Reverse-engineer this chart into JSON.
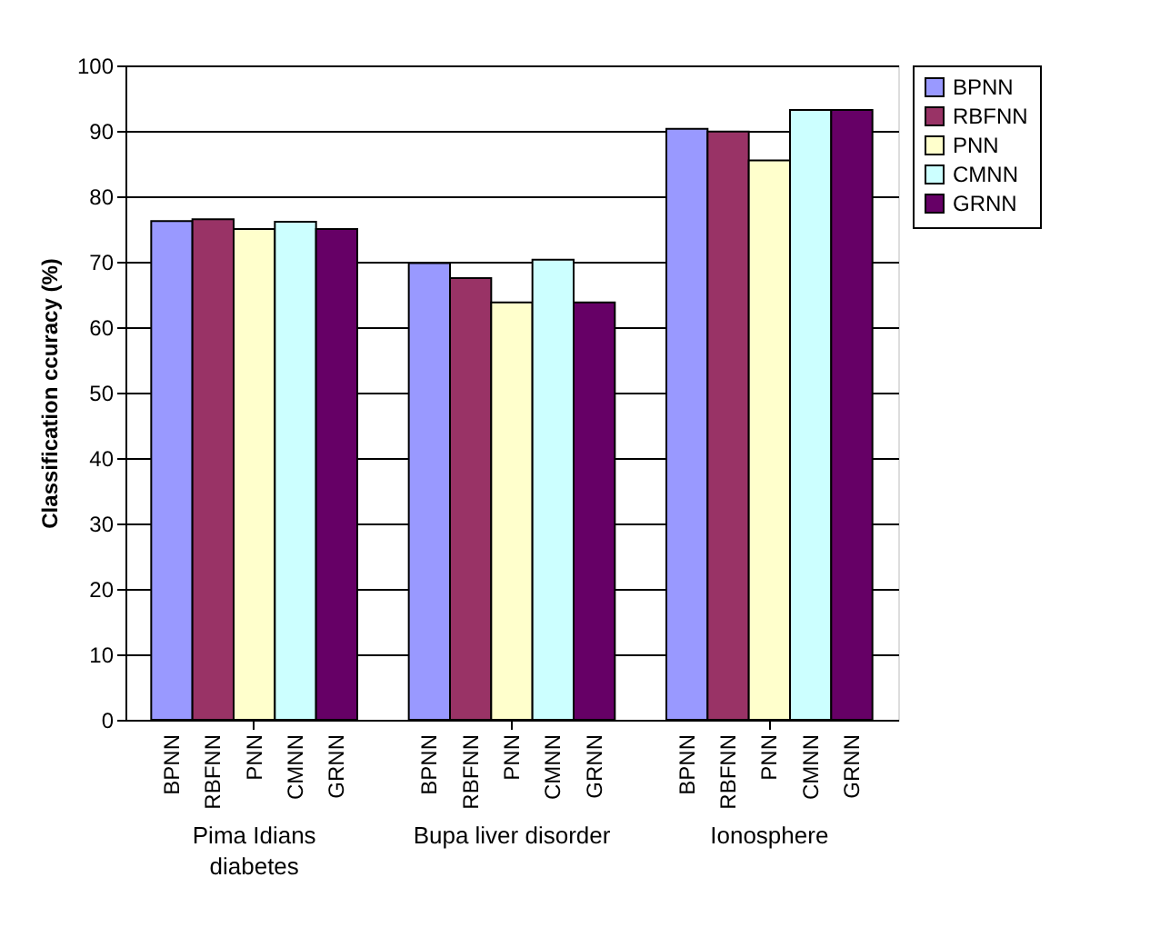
{
  "chart_data": {
    "type": "bar",
    "ylabel": "Classification ccuracy (%)",
    "categories": [
      "Pima Idians diabetes",
      "Bupa liver disorder",
      "Ionosphere"
    ],
    "series": [
      {
        "name": "BPNN",
        "color": "#9999ff",
        "values": [
          76.2,
          69.8,
          90.3
        ]
      },
      {
        "name": "RBFNN",
        "color": "#993366",
        "values": [
          76.5,
          67.5,
          89.9
        ]
      },
      {
        "name": "PNN",
        "color": "#ffffcc",
        "values": [
          75.0,
          63.8,
          85.5
        ]
      },
      {
        "name": "CMNN",
        "color": "#ccffff",
        "values": [
          76.1,
          70.3,
          93.2
        ]
      },
      {
        "name": "GRNN",
        "color": "#660066",
        "values": [
          75.0,
          63.8,
          93.2
        ]
      }
    ],
    "ylim": [
      0,
      100
    ],
    "yticks": [
      0,
      10,
      20,
      30,
      40,
      50,
      60,
      70,
      80,
      90,
      100
    ],
    "grid": "y",
    "legend": "right"
  }
}
